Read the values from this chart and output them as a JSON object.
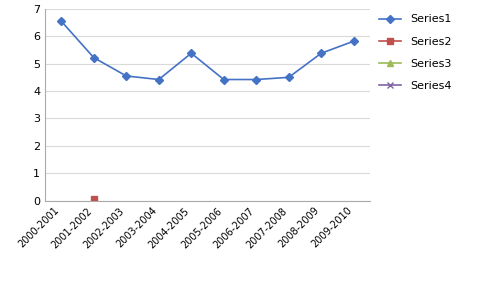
{
  "categories": [
    "2000-2001",
    "2001-2002",
    "2002-2003",
    "2003-2004",
    "2004-2005",
    "2005-2006",
    "2006-2007",
    "2007-2008",
    "2008-2009",
    "2009-2010"
  ],
  "series1": [
    6.55,
    5.22,
    4.55,
    4.42,
    5.38,
    4.42,
    4.42,
    4.5,
    5.38,
    5.82
  ],
  "series2_x": [
    1
  ],
  "series2_y": [
    0.07
  ],
  "series1_color": "#4472C4",
  "series2_color": "#C0504D",
  "series3_color": "#9BBB59",
  "series4_color": "#8064A2",
  "ylim": [
    0,
    7
  ],
  "yticks": [
    0,
    1,
    2,
    3,
    4,
    5,
    6,
    7
  ],
  "background_color": "#FFFFFF",
  "grid_color": "#D9D9D9",
  "legend_labels": [
    "Series1",
    "Series2",
    "Series3",
    "Series4"
  ]
}
